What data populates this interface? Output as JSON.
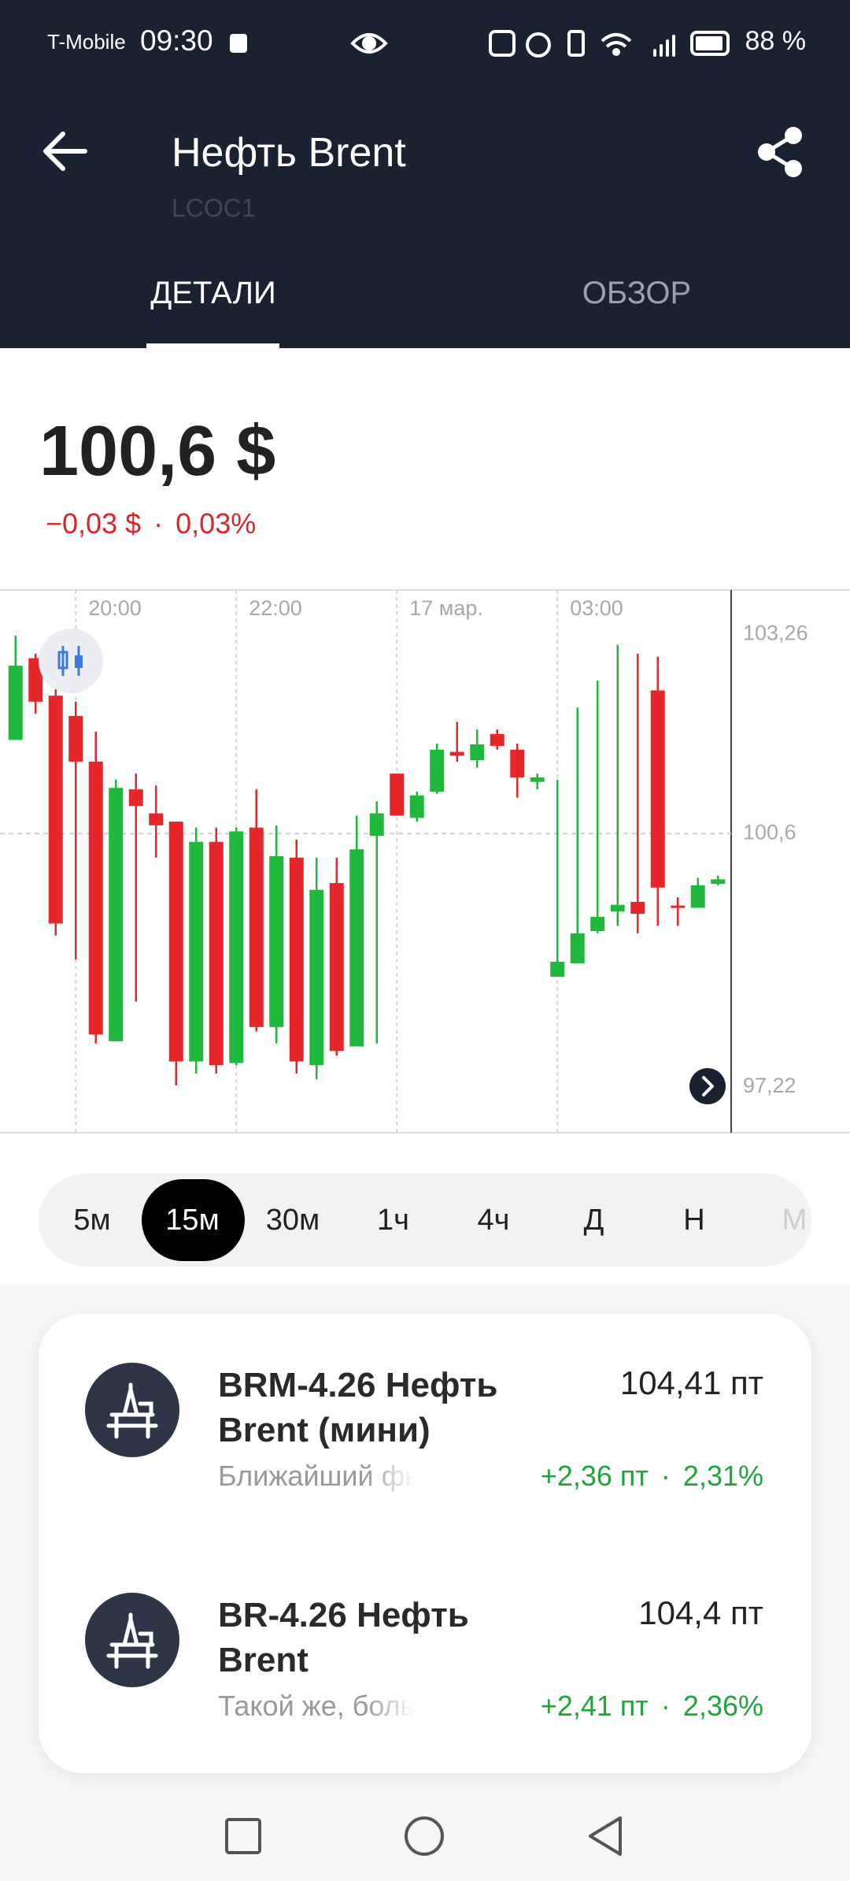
{
  "status_bar": {
    "carrier": "T-Mobile",
    "time": "09:30",
    "battery": "88 %"
  },
  "header": {
    "title": "Нефть Brent",
    "ticker": "LCOC1",
    "tabs": [
      "ДЕТАЛИ",
      "ОБЗОР"
    ]
  },
  "separator": "·",
  "quote": {
    "price": "100,6 $",
    "change": "−0,03 $",
    "change_percent": "0,03%"
  },
  "chart_data": {
    "type": "candlestick",
    "categories": [
      null,
      null,
      null,
      "20:00",
      null,
      null,
      null,
      null,
      null,
      null,
      null,
      "22:00",
      null,
      null,
      null,
      null,
      null,
      null,
      null,
      "17 мар.",
      null,
      null,
      null,
      null,
      null,
      null,
      null,
      "03:00",
      null,
      null,
      null,
      null,
      null,
      null,
      null,
      null
    ],
    "open": [
      101.85,
      102.94,
      102.44,
      102.17,
      101.56,
      97.83,
      101.19,
      100.87,
      100.76,
      97.56,
      100.49,
      97.54,
      100.68,
      98.02,
      100.28,
      97.51,
      99.94,
      97.76,
      100.57,
      101.4,
      100.81,
      101.16,
      101.69,
      101.58,
      101.93,
      101.72,
      101.29,
      98.69,
      98.87,
      99.3,
      99.56,
      99.69,
      102.51,
      99.64,
      99.61,
      99.93
    ],
    "high": [
      103.24,
      103.0,
      102.68,
      102.36,
      101.96,
      101.32,
      101.4,
      101.24,
      100.76,
      100.68,
      100.68,
      100.68,
      101.19,
      100.71,
      100.52,
      100.28,
      100.28,
      100.84,
      101.03,
      101.4,
      101.16,
      101.8,
      102.09,
      101.99,
      101.99,
      101.8,
      101.4,
      101.32,
      102.28,
      102.64,
      103.12,
      103.0,
      102.96,
      99.75,
      100.01,
      100.04
    ],
    "low": [
      101.85,
      102.2,
      99.24,
      98.92,
      97.8,
      97.83,
      98.36,
      100.28,
      97.24,
      97.4,
      97.4,
      97.51,
      97.96,
      97.8,
      97.4,
      97.32,
      97.64,
      97.76,
      97.8,
      100.84,
      100.76,
      101.13,
      101.56,
      101.48,
      101.72,
      101.08,
      101.19,
      98.69,
      98.87,
      99.27,
      99.37,
      99.27,
      99.37,
      99.37,
      99.61,
      99.91
    ],
    "close": [
      102.84,
      102.36,
      99.4,
      101.56,
      97.92,
      101.21,
      100.97,
      100.71,
      97.56,
      100.49,
      97.51,
      100.63,
      98.02,
      100.3,
      97.56,
      99.85,
      97.7,
      100.39,
      100.87,
      100.84,
      101.11,
      101.72,
      101.64,
      101.79,
      101.77,
      101.35,
      101.35,
      98.89,
      99.27,
      99.49,
      99.65,
      99.53,
      99.88,
      99.61,
      99.91,
      99.99
    ],
    "up_color": "#1fb83c",
    "down_color": "#e5262b",
    "ylim": [
      96.61,
      103.85
    ],
    "yticks": [
      {
        "value": 97.22,
        "label": "97,22"
      },
      {
        "value": 100.6,
        "label": "100,6"
      },
      {
        "value": 103.26,
        "label": "103,26"
      }
    ],
    "price_line": 100.6
  },
  "timeframes": [
    "5м",
    "15м",
    "30м",
    "1ч",
    "4ч",
    "Д",
    "Н",
    "М"
  ],
  "selected_timeframe": 1,
  "instruments": [
    {
      "name": "BRM-4.26 Нефть Brent (мини)",
      "price": "104,41 пт",
      "description": "Ближайший фьючер",
      "change": "+2,36 пт",
      "change_percent": "2,31%"
    },
    {
      "name": "BR-4.26 Нефть Brent",
      "price": "104,4 пт",
      "description": "Такой же, больше ло",
      "change": "+2,41 пт",
      "change_percent": "2,36%"
    }
  ]
}
